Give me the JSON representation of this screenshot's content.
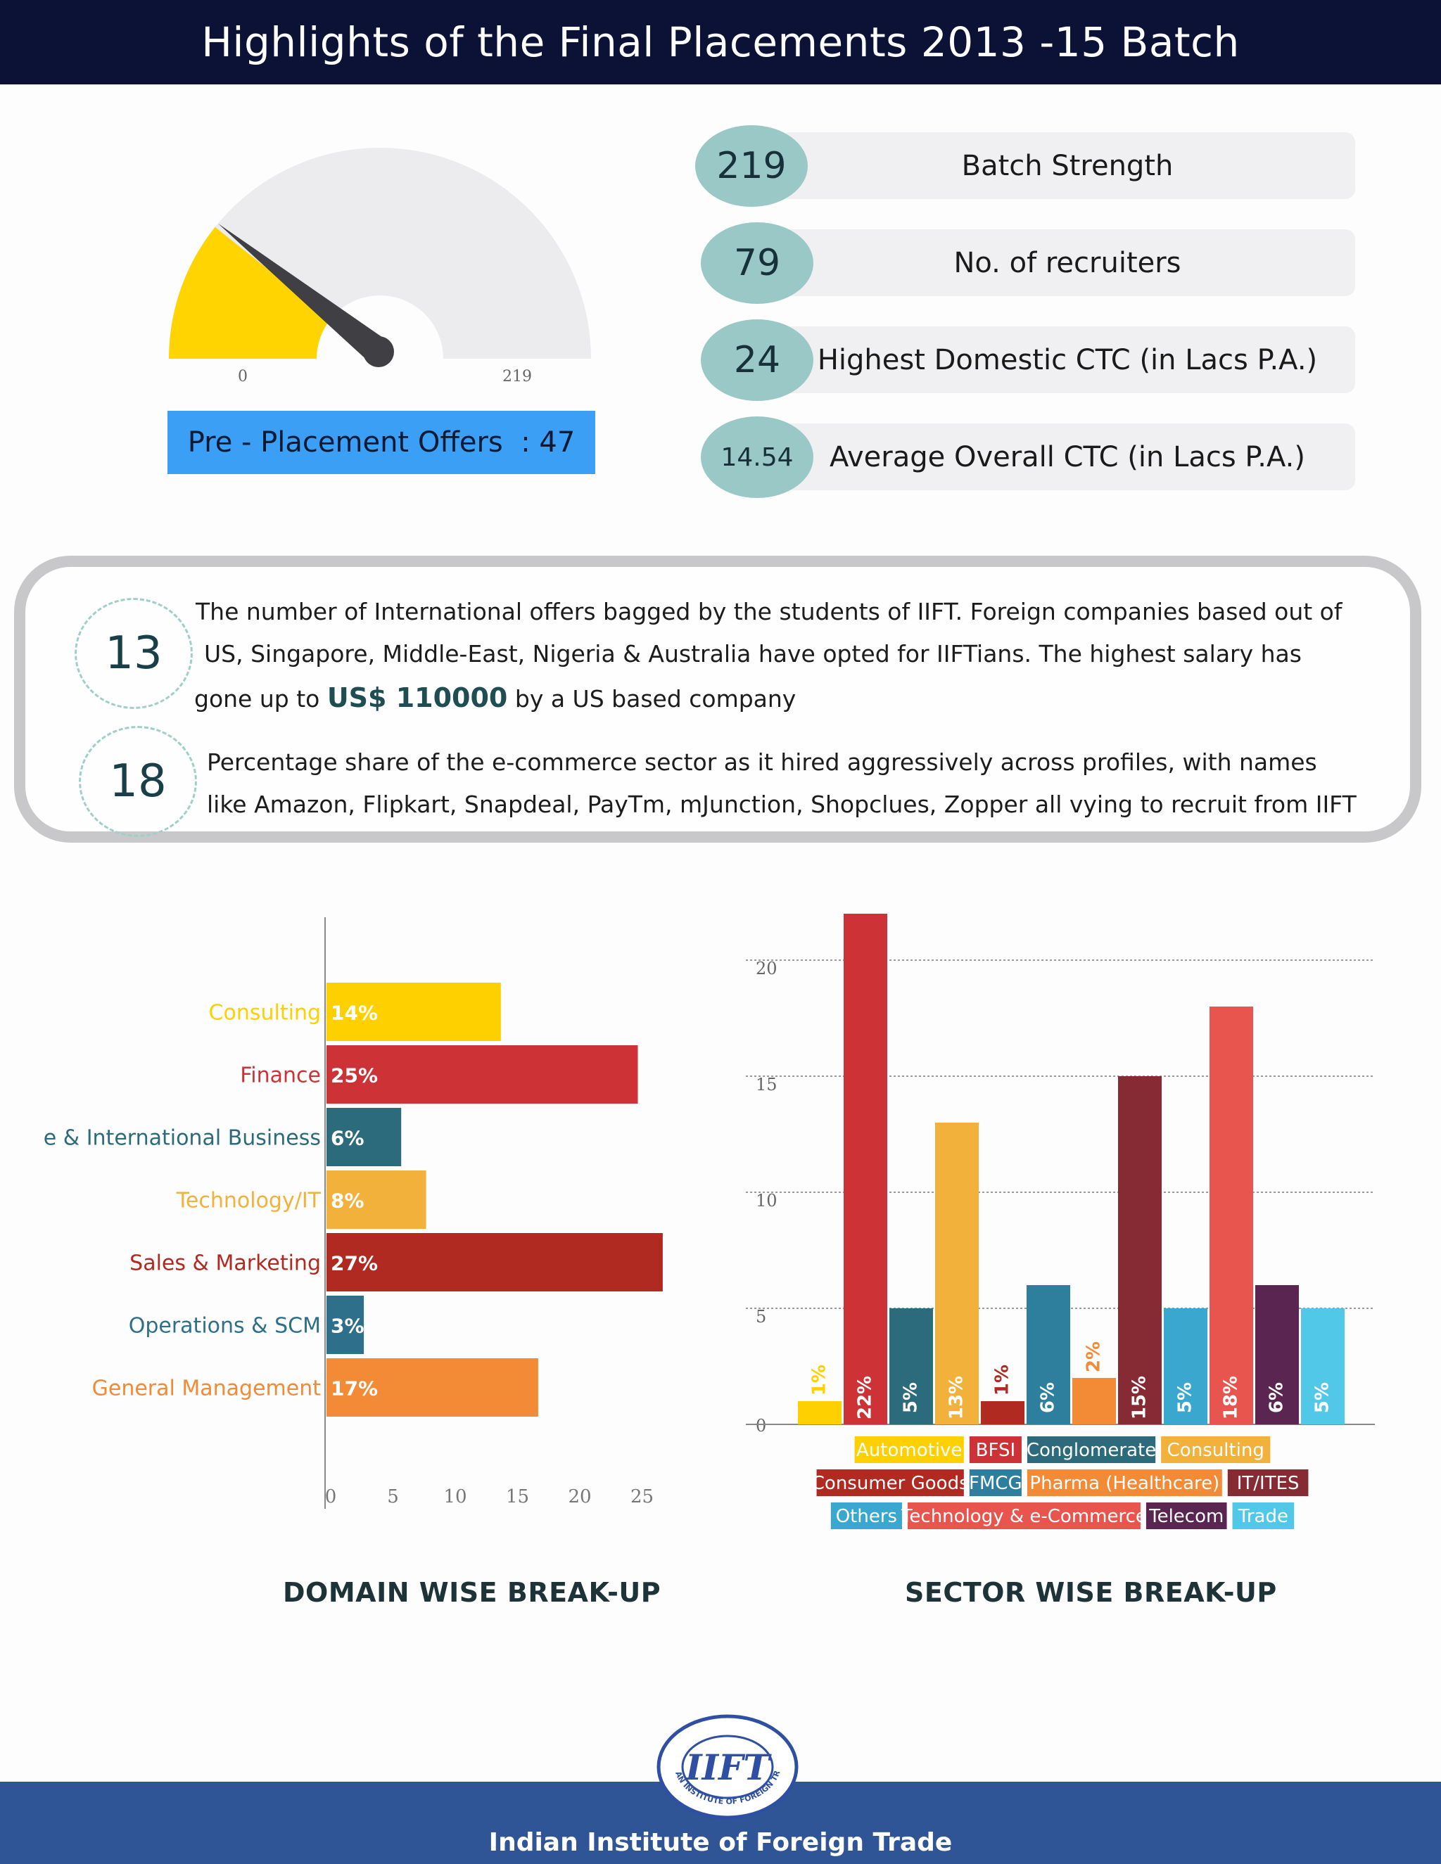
{
  "header": {
    "title": "Highlights of the Final Placements 2013 -15 Batch"
  },
  "gauge": {
    "min_label": "0",
    "max_label": "219",
    "min": 0,
    "max": 219,
    "value": 47,
    "fill_color": "#ffd400",
    "needle_color": "#3f3f44"
  },
  "ppo": {
    "label": "Pre - Placement Offers  : 47"
  },
  "stats": [
    {
      "value": "219",
      "label": "Batch Strength"
    },
    {
      "value": "79",
      "label": "No. of recruiters"
    },
    {
      "value": "24",
      "label": "Highest Domestic CTC (in Lacs P.A.)"
    },
    {
      "value": "14.54",
      "label": "Average Overall CTC (in Lacs P.A.)"
    }
  ],
  "info": {
    "intl": {
      "number": "13",
      "line1": "The number of International offers bagged by the students of IIFT. Foreign companies based out of",
      "line2": "US, Singapore, Middle-East, Nigeria & Australia have opted for IIFTians. The highest salary has",
      "line3_pre": "gone up to",
      "line3_strong": "US$ 110000",
      "line3_post": "by a US based company"
    },
    "ecom": {
      "number": "18",
      "line1": "Percentage share of the e-commerce sector as it hired aggressively across profiles, with names",
      "line2": "like Amazon, Flipkart, Snapdeal, PayTm, mJunction, Shopclues, Zopper all vying to recruit from IIFT"
    }
  },
  "chart_data": [
    {
      "type": "bar",
      "orientation": "horizontal",
      "title": "DOMAIN WISE BREAK-UP",
      "categories": [
        "Consulting",
        "Finance",
        "Trade & International Business",
        "Technology/IT",
        "Sales & Marketing",
        "Operations & SCM",
        "General Management"
      ],
      "values": [
        14,
        25,
        6,
        8,
        27,
        3,
        17
      ],
      "labels": [
        "14%",
        "25%",
        "6%",
        "8%",
        "27%",
        "3%",
        "17%"
      ],
      "colors": [
        "#ffd000",
        "#cd3236",
        "#2b6b7c",
        "#f2b13a",
        "#b12a22",
        "#2e6f8a",
        "#f28a36"
      ],
      "xticks": [
        0,
        5,
        10,
        15,
        20,
        25
      ],
      "xlim": [
        0,
        28.5
      ],
      "grid": false
    },
    {
      "type": "bar",
      "title": "SECTOR WISE BREAK-UP",
      "categories": [
        "Automotive",
        "BFSI",
        "Conglomerate",
        "Consulting",
        "Consumer Goods",
        "FMCG",
        "Pharma (Healthcare)",
        "IT/ITES",
        "Others",
        "Technology & e-Commerce",
        "Telecom",
        "Trade"
      ],
      "values": [
        1,
        22,
        5,
        13,
        1,
        6,
        2,
        15,
        5,
        18,
        6,
        5
      ],
      "labels": [
        "1%",
        "22%",
        "5%",
        "13%",
        "1%",
        "6%",
        "2%",
        "15%",
        "5%",
        "18%",
        "6%",
        "5%"
      ],
      "colors": [
        "#ffd000",
        "#cd3236",
        "#2b6b7c",
        "#f2b13a",
        "#b12a22",
        "#2e7f9e",
        "#f28a36",
        "#862b34",
        "#3aa7cf",
        "#e8554e",
        "#5a2550",
        "#52c8e8"
      ],
      "yticks": [
        0,
        5,
        10,
        15,
        20
      ],
      "ylim": [
        0,
        22
      ],
      "grid": true,
      "legend_position": "bottom"
    }
  ],
  "footer": {
    "text": "Indian Institute of Foreign Trade"
  },
  "logo": {
    "text": "IIFT",
    "ring_text": "INDIAN INSTITUTE OF FOREIGN TRADE",
    "color": "#2f4fa2"
  }
}
